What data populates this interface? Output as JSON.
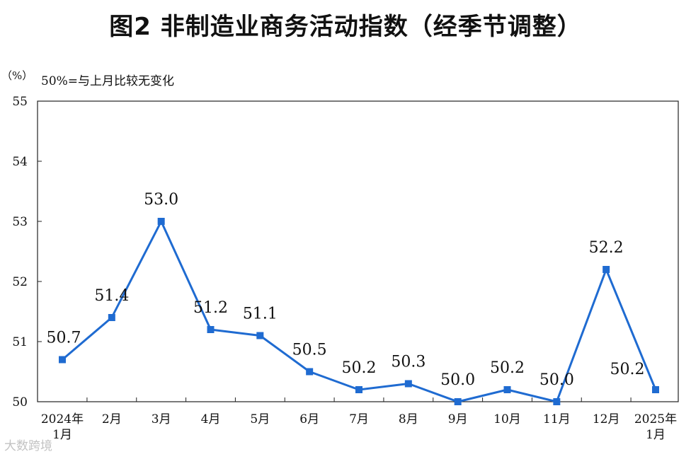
{
  "chart_data": {
    "type": "line",
    "title": "图2  非制造业商务活动指数（经季节调整）",
    "unit": "（%）",
    "note": "50%=与上月比较无变化",
    "categories": [
      "2024年\n1月",
      "2月",
      "3月",
      "4月",
      "5月",
      "6月",
      "7月",
      "8月",
      "9月",
      "10月",
      "11月",
      "12月",
      "2025年\n1月"
    ],
    "series": [
      {
        "values": [
          50.7,
          51.4,
          53.0,
          51.2,
          51.1,
          50.5,
          50.2,
          50.3,
          50.0,
          50.2,
          50.0,
          52.2,
          50.2
        ],
        "color": "#1f6bd1"
      }
    ],
    "data_labels": [
      "50.7",
      "51.4",
      "53.0",
      "51.2",
      "51.1",
      "50.5",
      "50.2",
      "50.3",
      "50.0",
      "50.2",
      "50.0",
      "52.2",
      "50.2"
    ],
    "ylim": [
      50,
      55
    ],
    "yticks": [
      "50",
      "51",
      "52",
      "53",
      "54",
      "55"
    ],
    "grid": false,
    "legend": "none"
  },
  "watermark": "大数跨境"
}
